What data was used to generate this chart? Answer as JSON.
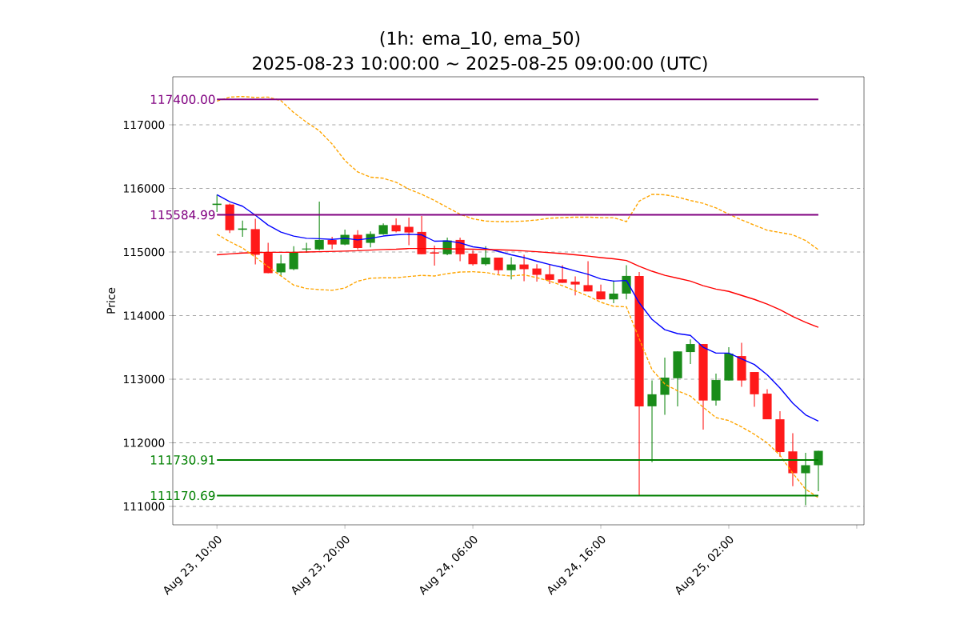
{
  "chart_data": {
    "type": "candlestick",
    "title": "(1h: ema_10, ema_50)",
    "subtitle": "2025-08-23 10:00:00 ~ 2025-08-25 09:00:00 (UTC)",
    "ylabel": "Price",
    "x": [
      "2025-08-23T10:00",
      "2025-08-23T11:00",
      "2025-08-23T12:00",
      "2025-08-23T13:00",
      "2025-08-23T14:00",
      "2025-08-23T15:00",
      "2025-08-23T16:00",
      "2025-08-23T17:00",
      "2025-08-23T18:00",
      "2025-08-23T19:00",
      "2025-08-23T20:00",
      "2025-08-23T21:00",
      "2025-08-23T22:00",
      "2025-08-23T23:00",
      "2025-08-24T00:00",
      "2025-08-24T01:00",
      "2025-08-24T02:00",
      "2025-08-24T03:00",
      "2025-08-24T04:00",
      "2025-08-24T05:00",
      "2025-08-24T06:00",
      "2025-08-24T07:00",
      "2025-08-24T08:00",
      "2025-08-24T09:00",
      "2025-08-24T10:00",
      "2025-08-24T11:00",
      "2025-08-24T12:00",
      "2025-08-24T13:00",
      "2025-08-24T14:00",
      "2025-08-24T15:00",
      "2025-08-24T16:00",
      "2025-08-24T17:00",
      "2025-08-24T18:00",
      "2025-08-24T19:00",
      "2025-08-24T20:00",
      "2025-08-24T21:00",
      "2025-08-24T22:00",
      "2025-08-24T23:00",
      "2025-08-25T00:00",
      "2025-08-25T01:00",
      "2025-08-25T02:00",
      "2025-08-25T03:00",
      "2025-08-25T04:00",
      "2025-08-25T05:00",
      "2025-08-25T06:00",
      "2025-08-25T07:00",
      "2025-08-25T08:00",
      "2025-08-25T09:00"
    ],
    "ohlc": [
      [
        115740,
        115900,
        115630,
        115760
      ],
      [
        115747,
        115760,
        115300,
        115342
      ],
      [
        115350,
        115495,
        115240,
        115370
      ],
      [
        115360,
        115522,
        114804,
        114956
      ],
      [
        114987,
        115144,
        114668,
        114668
      ],
      [
        114680,
        114956,
        114624,
        114820
      ],
      [
        114730,
        115090,
        114713,
        115001
      ],
      [
        115040,
        115144,
        114992,
        115055
      ],
      [
        115041,
        115792,
        115027,
        115190
      ],
      [
        115190,
        115240,
        115045,
        115118
      ],
      [
        115118,
        115351,
        115108,
        115270
      ],
      [
        115270,
        115342,
        115037,
        115063
      ],
      [
        115144,
        115325,
        115073,
        115284
      ],
      [
        115279,
        115450,
        115270,
        115423
      ],
      [
        115423,
        115530,
        115307,
        115325
      ],
      [
        115396,
        115540,
        115108,
        115307
      ],
      [
        115316,
        115566,
        114965,
        114965
      ],
      [
        114995,
        115100,
        114786,
        114975
      ],
      [
        114965,
        115226,
        114950,
        115181
      ],
      [
        115190,
        115226,
        114856,
        114965
      ],
      [
        114975,
        115027,
        114786,
        114808
      ],
      [
        114808,
        115090,
        114786,
        114912
      ],
      [
        114912,
        114912,
        114650,
        114713
      ],
      [
        114713,
        114920,
        114570,
        114804
      ],
      [
        114804,
        114956,
        114542,
        114730
      ],
      [
        114741,
        114808,
        114534,
        114641
      ],
      [
        114650,
        114808,
        114497,
        114561
      ],
      [
        114570,
        114794,
        114515,
        114515
      ],
      [
        114534,
        114615,
        114318,
        114489
      ],
      [
        114479,
        114856,
        114380,
        114380
      ],
      [
        114380,
        114489,
        114255,
        114255
      ],
      [
        114255,
        114552,
        114195,
        114346
      ],
      [
        114346,
        114794,
        114255,
        114624
      ],
      [
        114624,
        114685,
        111170,
        112574
      ],
      [
        112574,
        112980,
        111694,
        112763
      ],
      [
        112755,
        113339,
        112440,
        113025
      ],
      [
        113015,
        113437,
        112574,
        113437
      ],
      [
        113427,
        113626,
        113239,
        113553
      ],
      [
        113553,
        113553,
        112207,
        112665
      ],
      [
        112665,
        113088,
        112584,
        112987
      ],
      [
        112980,
        113503,
        112980,
        113402
      ],
      [
        113364,
        113572,
        112880,
        112980
      ],
      [
        113113,
        113113,
        112566,
        112763
      ],
      [
        112773,
        112844,
        112370,
        112370
      ],
      [
        112370,
        112496,
        111780,
        111855
      ],
      [
        111865,
        112152,
        111317,
        111522
      ],
      [
        111522,
        111842,
        111020,
        111648
      ],
      [
        111648,
        111874,
        111238,
        111874
      ]
    ],
    "colors": [
      "#1a8c1a",
      "#ff1a1a",
      "#1a8c1a",
      "#ff1a1a",
      "#ff1a1a",
      "#1a8c1a",
      "#1a8c1a",
      "#1a8c1a",
      "#1a8c1a",
      "#ff1a1a",
      "#1a8c1a",
      "#ff1a1a",
      "#1a8c1a",
      "#1a8c1a",
      "#ff1a1a",
      "#ff1a1a",
      "#ff1a1a",
      "#ff1a1a",
      "#1a8c1a",
      "#ff1a1a",
      "#ff1a1a",
      "#1a8c1a",
      "#ff1a1a",
      "#1a8c1a",
      "#ff1a1a",
      "#ff1a1a",
      "#ff1a1a",
      "#ff1a1a",
      "#ff1a1a",
      "#ff1a1a",
      "#ff1a1a",
      "#1a8c1a",
      "#1a8c1a",
      "#ff1a1a",
      "#1a8c1a",
      "#1a8c1a",
      "#1a8c1a",
      "#1a8c1a",
      "#ff1a1a",
      "#1a8c1a",
      "#1a8c1a",
      "#ff1a1a",
      "#ff1a1a",
      "#ff1a1a",
      "#ff1a1a",
      "#ff1a1a",
      "#1a8c1a",
      "#1a8c1a"
    ],
    "series": [
      {
        "type": "line",
        "color": "#0000ff",
        "line_style": "solid",
        "values": [
          115900,
          115792,
          115720,
          115578,
          115423,
          115314,
          115251,
          115216,
          115210,
          115199,
          115216,
          115190,
          115216,
          115251,
          115270,
          115279,
          115270,
          115170,
          115175,
          115144,
          115082,
          115055,
          115010,
          114956,
          114912,
          114856,
          114804,
          114758,
          114704,
          114650,
          114578,
          114542,
          114552,
          114201,
          113940,
          113779,
          113717,
          113689,
          113503,
          113410,
          113410,
          113320,
          113231,
          113069,
          112861,
          112622,
          112440,
          112340
        ]
      },
      {
        "type": "line",
        "color": "#ff0000",
        "line_style": "solid",
        "values": [
          114956,
          114970,
          114985,
          114990,
          114995,
          114995,
          114995,
          115000,
          115005,
          115010,
          115015,
          115020,
          115030,
          115040,
          115045,
          115055,
          115055,
          115055,
          115050,
          115048,
          115045,
          115040,
          115035,
          115028,
          115018,
          115005,
          114990,
          114975,
          114956,
          114935,
          114912,
          114893,
          114866,
          114776,
          114698,
          114633,
          114588,
          114542,
          114471,
          114416,
          114381,
          114318,
          114255,
          114182,
          114094,
          113986,
          113896,
          113815
        ]
      },
      {
        "type": "line",
        "color": "#ffa500",
        "line_style": "dashed",
        "values": [
          117372,
          117436,
          117445,
          117430,
          117436,
          117380,
          117193,
          117040,
          116906,
          116698,
          116439,
          116259,
          116177,
          116160,
          116097,
          115988,
          115908,
          115810,
          115702,
          115594,
          115522,
          115486,
          115478,
          115478,
          115486,
          115504,
          115532,
          115540,
          115548,
          115548,
          115540,
          115540,
          115478,
          115800,
          115908,
          115900,
          115863,
          115810,
          115765,
          115693,
          115594,
          115504,
          115423,
          115342,
          115307,
          115270,
          115181,
          115037
        ]
      },
      {
        "type": "line",
        "color": "#ffa500",
        "line_style": "dashed",
        "values": [
          115279,
          115163,
          115063,
          114920,
          114767,
          114623,
          114479,
          114426,
          114409,
          114398,
          114434,
          114542,
          114588,
          114595,
          114595,
          114615,
          114633,
          114623,
          114660,
          114685,
          114690,
          114678,
          114641,
          114623,
          114641,
          114597,
          114542,
          114471,
          114390,
          114308,
          114210,
          114147,
          114138,
          113635,
          113150,
          112924,
          112817,
          112735,
          112559,
          112396,
          112350,
          112250,
          112134,
          111999,
          111804,
          111522,
          111271,
          111138
        ]
      }
    ],
    "ref_lines": [
      {
        "axis": "y",
        "value": 117400.0,
        "label": "117400.00",
        "color": "#800080"
      },
      {
        "axis": "y",
        "value": 115584.99,
        "label": "115584.99",
        "color": "#800080"
      },
      {
        "axis": "y",
        "value": 111730.91,
        "label": "111730.91",
        "color": "#008000"
      },
      {
        "axis": "y",
        "value": 111170.69,
        "label": "111170.69",
        "color": "#008000"
      }
    ],
    "xlim": [
      "2025-08-23T06:33",
      "2025-08-25T12:34"
    ],
    "xticks": [
      {
        "value": "2025-08-23T10:00",
        "label": "Aug 23, 10:00"
      },
      {
        "value": "2025-08-23T20:00",
        "label": "Aug 23, 20:00"
      },
      {
        "value": "2025-08-24T06:00",
        "label": "Aug 24, 06:00"
      },
      {
        "value": "2025-08-24T16:00",
        "label": "Aug 24, 16:00"
      },
      {
        "value": "2025-08-25T02:00",
        "label": "Aug 25, 02:00"
      },
      {
        "value": "2025-08-25T12:00",
        "label": null
      }
    ],
    "ylim": [
      110711,
      117755
    ],
    "yticks": [
      111000,
      112000,
      113000,
      114000,
      115000,
      116000,
      117000
    ],
    "grid": "y"
  }
}
